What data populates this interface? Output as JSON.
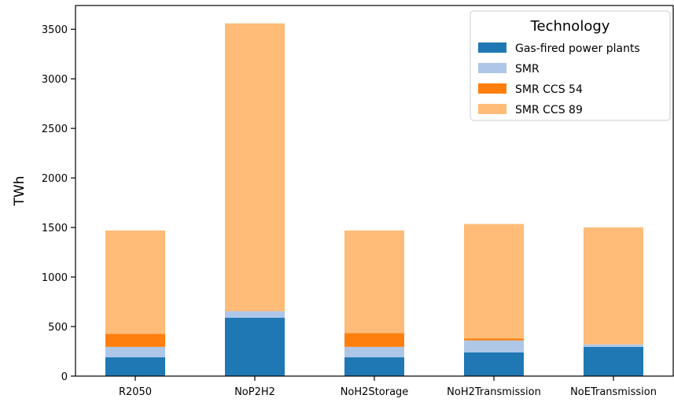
{
  "chart_data": {
    "type": "bar",
    "stacked": true,
    "categories": [
      "R2050",
      "NoP2H2",
      "NoH2Storage",
      "NoH2Transmission",
      "NoETransmission"
    ],
    "series": [
      {
        "name": "Gas-fired power plants",
        "color": "#1f77b4",
        "values": [
          190,
          590,
          190,
          240,
          295
        ]
      },
      {
        "name": "SMR",
        "color": "#aec7e8",
        "values": [
          105,
          65,
          105,
          120,
          25
        ]
      },
      {
        "name": "SMR CCS 54",
        "color": "#ff7f0e",
        "values": [
          130,
          0,
          140,
          20,
          0
        ]
      },
      {
        "name": "SMR CCS 89",
        "color": "#ffbb78",
        "values": [
          1045,
          2905,
          1035,
          1155,
          1180
        ]
      }
    ],
    "ylabel": "TWh",
    "xlabel": "",
    "ylim": [
      0,
      3740
    ],
    "yticks": [
      0,
      500,
      1000,
      1500,
      2000,
      2500,
      3000,
      3500
    ],
    "grid": false,
    "legend": {
      "title": "Technology",
      "placement": "top-right"
    }
  }
}
